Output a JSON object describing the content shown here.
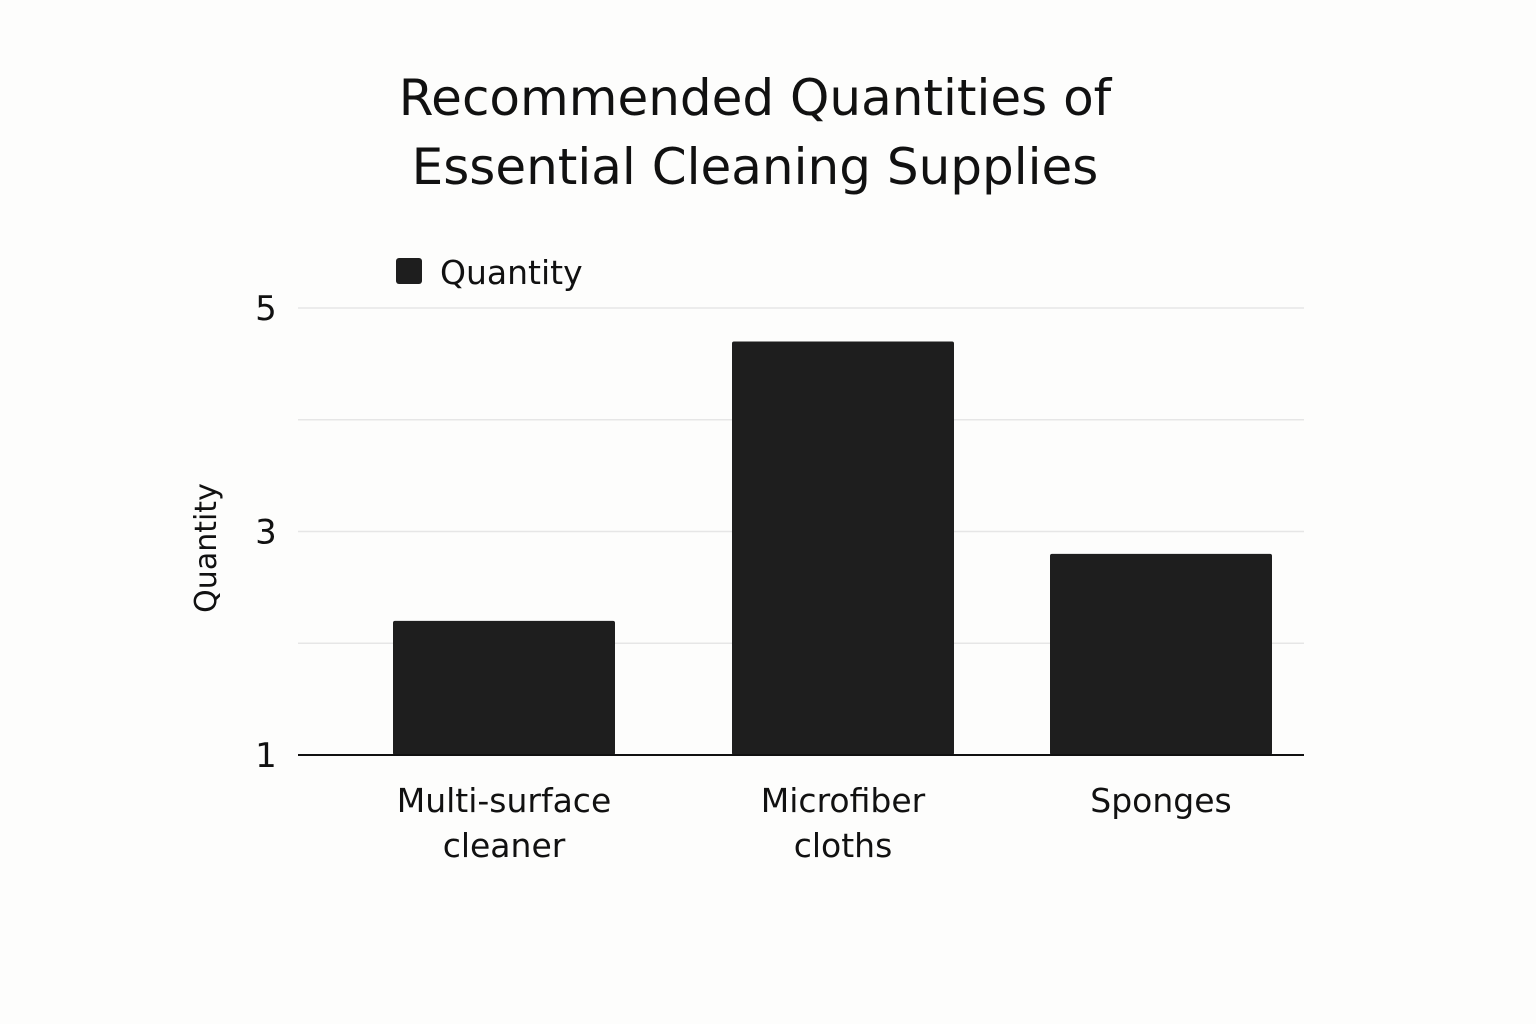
{
  "chart_data": {
    "type": "bar",
    "title_lines": [
      "Recommended Quantities of",
      "Essential Cleaning Supplies"
    ],
    "categories": [
      [
        "Multi-surface",
        "cleaner"
      ],
      [
        "Microfiber",
        "cloths"
      ],
      [
        "Sponges"
      ]
    ],
    "series": [
      {
        "name": "Quantity",
        "values": [
          2.2,
          4.7,
          2.8
        ],
        "color": "#1e1e1e"
      }
    ],
    "ylabel": "Quantity",
    "xlabel": "",
    "ylim": [
      1,
      5
    ],
    "yticks": [
      "5",
      "3",
      "1"
    ],
    "grid": true,
    "legend_position": "top-left"
  }
}
